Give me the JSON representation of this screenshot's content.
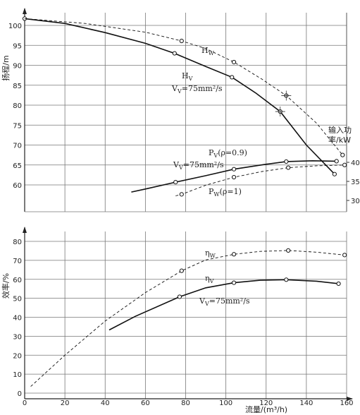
{
  "chart_data": {
    "type": "line",
    "xlabel": "流量/(m³/h)",
    "xticks": [
      "0",
      "20",
      "40",
      "60",
      "80",
      "100",
      "120",
      "140",
      "160"
    ],
    "xlim": [
      0,
      160
    ],
    "upper_panel": {
      "ylabel": "扬程/m",
      "ylim": [
        55,
        103
      ],
      "yticks": [
        "60",
        "65",
        "70",
        "75",
        "80",
        "85",
        "90",
        "95",
        "100"
      ],
      "right_axis": {
        "ylabel_line1": "输入功",
        "ylabel_line2": "率/kW",
        "ylim": [
          29,
          43.5
        ],
        "yticks": [
          "30",
          "35",
          "40"
        ]
      },
      "series": [
        {
          "key": "Hv",
          "style": "solid",
          "axis": "left",
          "points": [
            [
              0,
              101.7
            ],
            [
              20,
              100.5
            ],
            [
              40,
              98.2
            ],
            [
              60,
              95.5
            ],
            [
              74.5,
              93.0
            ],
            [
              90,
              89.7
            ],
            [
              103,
              87.0
            ],
            [
              115,
              83
            ],
            [
              127,
              78.4
            ],
            [
              140,
              70
            ],
            [
              154,
              62.7
            ]
          ],
          "markers": [
            [
              0,
              101.7
            ],
            [
              74.5,
              93.0
            ],
            [
              103,
              87.0
            ],
            [
              127,
              78.4
            ],
            [
              154,
              62.7
            ]
          ]
        },
        {
          "key": "Hw",
          "style": "dashed",
          "axis": "left",
          "points": [
            [
              0,
              101.7
            ],
            [
              30,
              100.5
            ],
            [
              60,
              98.3
            ],
            [
              78,
              96.1
            ],
            [
              90,
              94.2
            ],
            [
              104,
              90.8
            ],
            [
              118,
              86.5
            ],
            [
              130,
              82.4
            ],
            [
              145,
              75.5
            ],
            [
              158,
              67.5
            ]
          ],
          "markers": [
            [
              78,
              96.1
            ],
            [
              104,
              90.8
            ],
            [
              130,
              82.4
            ],
            [
              158,
              67.5
            ]
          ]
        },
        {
          "key": "Pv",
          "style": "solid",
          "axis": "right",
          "points": [
            [
              53,
              32.2
            ],
            [
              60,
              33.0
            ],
            [
              75,
              34.8
            ],
            [
              90,
              36.5
            ],
            [
              104,
              38.2
            ],
            [
              120,
              39.5
            ],
            [
              130,
              40.2
            ],
            [
              143,
              40.4
            ],
            [
              155,
              40.3
            ]
          ],
          "markers": [
            [
              75,
              34.8
            ],
            [
              104,
              38.2
            ],
            [
              130,
              40.2
            ],
            [
              155,
              40.3
            ]
          ]
        },
        {
          "key": "Pw",
          "style": "dashed",
          "axis": "right",
          "points": [
            [
              75,
              31.2
            ],
            [
              78,
              31.6
            ],
            [
              90,
              34.0
            ],
            [
              104,
              36.1
            ],
            [
              118,
              37.6
            ],
            [
              131,
              38.6
            ],
            [
              145,
              39.1
            ],
            [
              159,
              39.3
            ]
          ],
          "markers": [
            [
              78,
              31.6
            ],
            [
              104,
              36.1
            ],
            [
              131,
              38.6
            ],
            [
              159,
              39.3
            ]
          ]
        }
      ]
    },
    "lower_panel": {
      "ylabel": "效率/%",
      "ylim": [
        0,
        84
      ],
      "yticks": [
        "0",
        "10",
        "20",
        "30",
        "40",
        "50",
        "60",
        "70",
        "80"
      ],
      "series": [
        {
          "key": "eta_v",
          "style": "solid",
          "points": [
            [
              42,
              33.3
            ],
            [
              55,
              40.5
            ],
            [
              77,
              50.8
            ],
            [
              90,
              55.5
            ],
            [
              104,
              58.2
            ],
            [
              117,
              59.5
            ],
            [
              130,
              59.8
            ],
            [
              145,
              59.0
            ],
            [
              156,
              57.7
            ]
          ],
          "markers": [
            [
              77,
              50.8
            ],
            [
              104,
              58.2
            ],
            [
              130,
              59.8
            ],
            [
              156,
              57.7
            ]
          ]
        },
        {
          "key": "eta_w",
          "style": "dashed",
          "points": [
            [
              3,
              3.5
            ],
            [
              20,
              20
            ],
            [
              40,
              38
            ],
            [
              60,
              53
            ],
            [
              78,
              64.5
            ],
            [
              90,
              70.2
            ],
            [
              104,
              73.2
            ],
            [
              117,
              74.7
            ],
            [
              131,
              75.2
            ],
            [
              145,
              74.3
            ],
            [
              159,
              72.8
            ]
          ],
          "markers": [
            [
              78,
              64.5
            ],
            [
              104,
              73.2
            ],
            [
              131,
              75.2
            ],
            [
              159,
              72.8
            ]
          ]
        }
      ]
    },
    "labels": {
      "Hw": {
        "main": "H",
        "sub": "W"
      },
      "Hv": {
        "main": "H",
        "sub": "V"
      },
      "Vv_upper": {
        "pre": "V",
        "sub": "V",
        "post": "=75mm²/s"
      },
      "Pv": {
        "main": "P",
        "sub": "V",
        "post": "(ρ=0.9)"
      },
      "Vv_mid": {
        "pre": "V",
        "sub": "V",
        "post": "=75mm²/s"
      },
      "Pw": {
        "main": "P",
        "sub": "W",
        "post": "(ρ=1)"
      },
      "eta_w": {
        "main": "η",
        "sub": "W"
      },
      "eta_v": {
        "main": "η",
        "sub": "V"
      },
      "Vv_lower": {
        "pre": "V",
        "sub": "V",
        "post": "=75mm²/s"
      }
    }
  }
}
